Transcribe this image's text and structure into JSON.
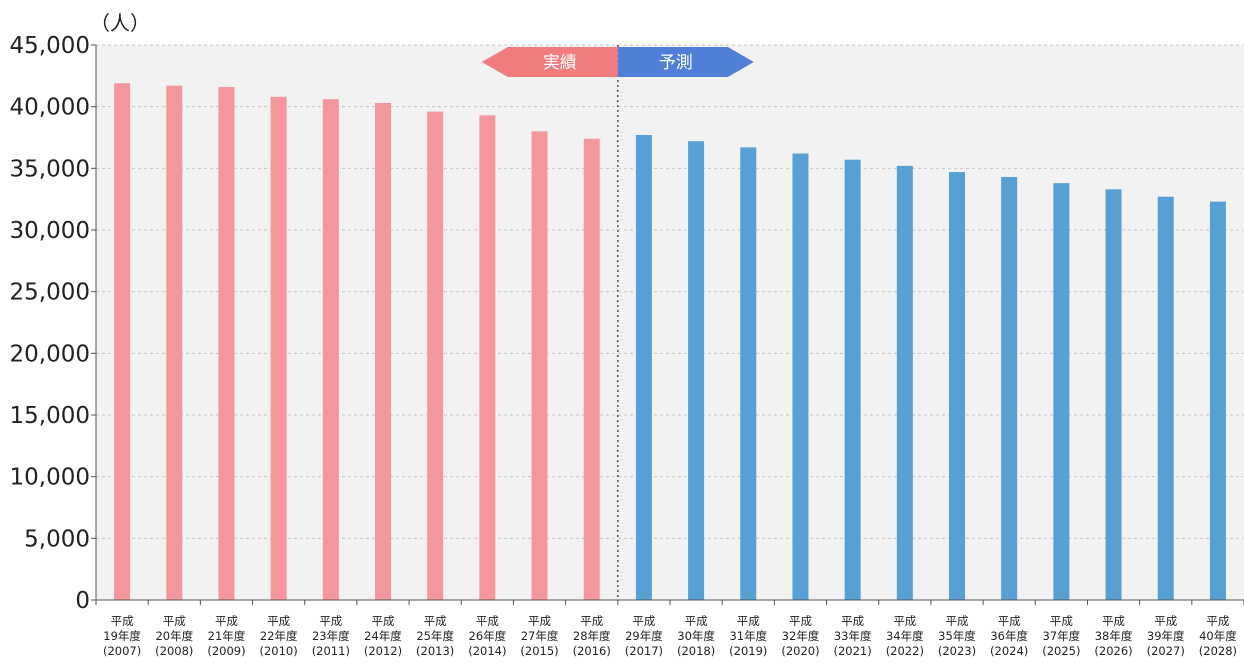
{
  "chart_data": {
    "type": "bar",
    "ylabel": "（人）",
    "ylim": [
      0,
      45000
    ],
    "yticks": [
      "0",
      "5,000",
      "10,000",
      "15,000",
      "20,000",
      "25,000",
      "30,000",
      "35,000",
      "40,000",
      "45,000"
    ],
    "grid": true,
    "categories": [
      {
        "line1": "平成",
        "line2": "19年度",
        "line3": "(2007)"
      },
      {
        "line1": "平成",
        "line2": "20年度",
        "line3": "(2008)"
      },
      {
        "line1": "平成",
        "line2": "21年度",
        "line3": "(2009)"
      },
      {
        "line1": "平成",
        "line2": "22年度",
        "line3": "(2010)"
      },
      {
        "line1": "平成",
        "line2": "23年度",
        "line3": "(2011)"
      },
      {
        "line1": "平成",
        "line2": "24年度",
        "line3": "(2012)"
      },
      {
        "line1": "平成",
        "line2": "25年度",
        "line3": "(2013)"
      },
      {
        "line1": "平成",
        "line2": "26年度",
        "line3": "(2014)"
      },
      {
        "line1": "平成",
        "line2": "27年度",
        "line3": "(2015)"
      },
      {
        "line1": "平成",
        "line2": "28年度",
        "line3": "(2016)"
      },
      {
        "line1": "平成",
        "line2": "29年度",
        "line3": "(2017)"
      },
      {
        "line1": "平成",
        "line2": "30年度",
        "line3": "(2018)"
      },
      {
        "line1": "平成",
        "line2": "31年度",
        "line3": "(2019)"
      },
      {
        "line1": "平成",
        "line2": "32年度",
        "line3": "(2020)"
      },
      {
        "line1": "平成",
        "line2": "33年度",
        "line3": "(2021)"
      },
      {
        "line1": "平成",
        "line2": "34年度",
        "line3": "(2022)"
      },
      {
        "line1": "平成",
        "line2": "35年度",
        "line3": "(2023)"
      },
      {
        "line1": "平成",
        "line2": "36年度",
        "line3": "(2024)"
      },
      {
        "line1": "平成",
        "line2": "37年度",
        "line3": "(2025)"
      },
      {
        "line1": "平成",
        "line2": "38年度",
        "line3": "(2026)"
      },
      {
        "line1": "平成",
        "line2": "39年度",
        "line3": "(2027)"
      },
      {
        "line1": "平成",
        "line2": "40年度",
        "line3": "(2028)"
      }
    ],
    "values": [
      41900,
      41700,
      41600,
      40800,
      40600,
      40300,
      39600,
      39300,
      38000,
      37400,
      37700,
      37200,
      36700,
      36200,
      35700,
      35200,
      34700,
      34300,
      33800,
      33300,
      32700,
      32300
    ],
    "actual_count": 10,
    "colors": {
      "actual": "#f4979c",
      "forecast": "#56a0d3"
    },
    "annotations": {
      "actual_label": "実績",
      "forecast_label": "予測",
      "actual_color": "#f07c7e",
      "forecast_color": "#4f7fd6"
    }
  }
}
